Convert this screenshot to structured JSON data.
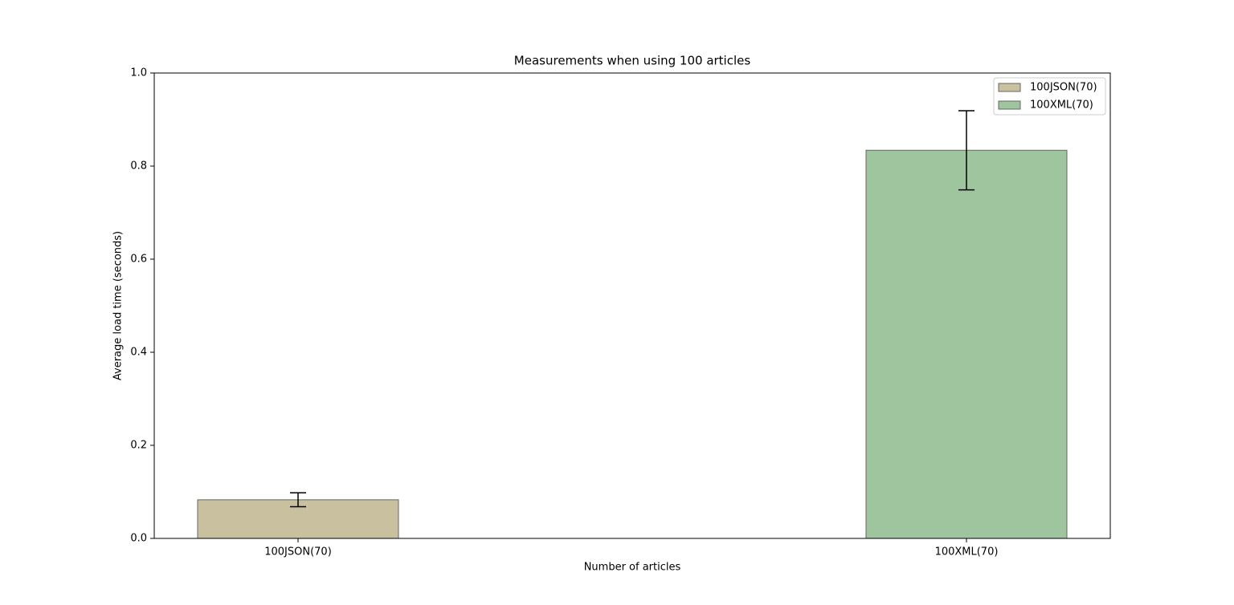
{
  "chart_data": {
    "type": "bar",
    "title": "Measurements when using 100 articles",
    "xlabel": "Number of articles",
    "ylabel": "Average load time (seconds)",
    "categories": [
      "100JSON(70)",
      "100XML(70)"
    ],
    "values": [
      0.083,
      0.834
    ],
    "errors": [
      0.015,
      0.085
    ],
    "colors": [
      "#c9c09f",
      "#9fc59f"
    ],
    "ylim": [
      0,
      1
    ],
    "yticks": [
      {
        "value": 0,
        "label": "0.0"
      },
      0.2,
      0.4,
      0.6,
      0.8,
      {
        "value": 1,
        "label": "1.0"
      }
    ],
    "legend": "upper right"
  }
}
